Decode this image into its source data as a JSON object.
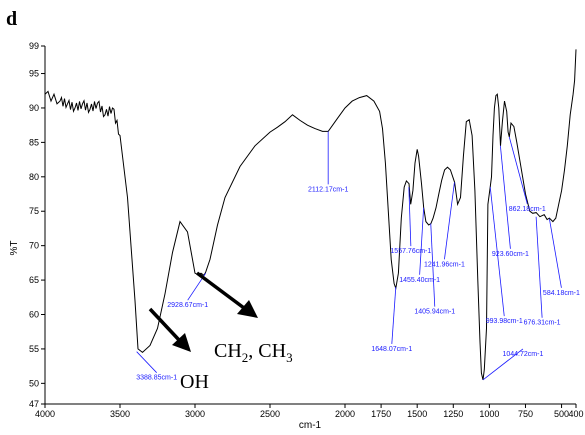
{
  "panel_label": "d",
  "chart_data": {
    "type": "line",
    "title": "",
    "xlabel": "cm-1",
    "ylabel": "%T",
    "xlim": [
      4000,
      400
    ],
    "ylim": [
      47,
      99
    ],
    "x_ticks": [
      4000,
      3500,
      3000,
      2500,
      2000,
      1750,
      1500,
      1250,
      1000,
      750,
      500,
      400
    ],
    "x_tick_labels": [
      "4000",
      "3500",
      "3000",
      "2500",
      "2000",
      "1750",
      "1500",
      "1250",
      "1000",
      "750",
      "500",
      "400"
    ],
    "y_ticks": [
      47,
      50,
      55,
      60,
      65,
      70,
      75,
      80,
      85,
      90,
      95,
      99
    ],
    "y_tick_labels": [
      "47",
      "50",
      "55",
      "60",
      "65",
      "70",
      "75",
      "80",
      "85",
      "90",
      "95",
      "99"
    ],
    "series": [
      {
        "x": [
          4000,
          3900,
          3850,
          3800,
          3750,
          3700,
          3650,
          3600,
          3550,
          3500,
          3450,
          3400,
          3380,
          3350,
          3300,
          3250,
          3200,
          3150,
          3100,
          3050,
          3000,
          2980,
          2960,
          2940,
          2928,
          2900,
          2850,
          2800,
          2700,
          2600,
          2500,
          2450,
          2400,
          2350,
          2300,
          2250,
          2200,
          2150,
          2112,
          2050,
          2000,
          1950,
          1900,
          1850,
          1800,
          1760,
          1740,
          1720,
          1700,
          1680,
          1660,
          1648,
          1630,
          1610,
          1590,
          1575,
          1557,
          1545,
          1530,
          1515,
          1500,
          1490,
          1470,
          1455,
          1440,
          1420,
          1405,
          1390,
          1370,
          1350,
          1330,
          1310,
          1290,
          1270,
          1241,
          1220,
          1200,
          1180,
          1160,
          1140,
          1120,
          1100,
          1080,
          1065,
          1055,
          1044,
          1035,
          1020,
          1010,
          994,
          985,
          975,
          965,
          955,
          945,
          935,
          923,
          910,
          895,
          880,
          870,
          862,
          850,
          830,
          810,
          790,
          770,
          750,
          720,
          700,
          676,
          650,
          620,
          600,
          584,
          560,
          540,
          520,
          500,
          480,
          460,
          440,
          420,
          410,
          400
        ],
        "y": [
          92.0,
          91.0,
          90.6,
          90.0,
          90.6,
          89.8,
          90.7,
          89.0,
          90.0,
          86.0,
          77.0,
          62.0,
          55.0,
          54.5,
          55.5,
          58.0,
          63.0,
          69.0,
          73.5,
          72.0,
          66.0,
          65.8,
          66.0,
          65.7,
          66.2,
          68.0,
          73.0,
          77.0,
          81.5,
          84.5,
          86.5,
          87.2,
          88.0,
          89.0,
          88.2,
          87.5,
          87.0,
          86.6,
          86.6,
          88.5,
          90.0,
          91.0,
          91.5,
          91.8,
          91.0,
          89.5,
          87.0,
          82.0,
          75.0,
          68.0,
          64.5,
          63.8,
          66.0,
          74.0,
          78.5,
          79.4,
          79.0,
          76.0,
          78.0,
          82.0,
          84.0,
          83.0,
          79.0,
          75.5,
          73.5,
          73.0,
          73.2,
          74.0,
          75.5,
          77.5,
          79.5,
          81.0,
          81.4,
          81.0,
          79.2,
          76.0,
          77.0,
          83.0,
          88.0,
          88.3,
          86.0,
          78.0,
          65.0,
          56.0,
          51.5,
          50.5,
          52.0,
          58.0,
          76.0,
          78.5,
          80.0,
          86.0,
          90.0,
          91.8,
          92.0,
          90.0,
          84.5,
          88.0,
          91.0,
          89.5,
          86.5,
          85.8,
          87.8,
          87.3,
          85.0,
          82.5,
          80.0,
          77.5,
          75.0,
          74.7,
          74.8,
          74.2,
          74.5,
          73.8,
          74.0,
          73.5,
          74.0,
          76.0,
          78.0,
          81.0,
          84.5,
          89.0,
          92.0,
          94.0,
          98.5
        ]
      }
    ],
    "peak_labels": [
      {
        "text": "3388.85cm-1",
        "x": 3388.85,
        "y": 54.6
      },
      {
        "text": "2928.67cm-1",
        "x": 2928.67,
        "y": 66.0
      },
      {
        "text": "2112.17cm-1",
        "x": 2112.17,
        "y": 86.6
      },
      {
        "text": "1648.07cm-1",
        "x": 1648.07,
        "y": 64.0
      },
      {
        "text": "1557.76cm-1",
        "x": 1557.76,
        "y": 78.5
      },
      {
        "text": "1455.40cm-1",
        "x": 1455.4,
        "y": 75.5
      },
      {
        "text": "1405.94cm-1",
        "x": 1405.94,
        "y": 73.2
      },
      {
        "text": "1241.96cm-1",
        "x": 1241.96,
        "y": 79.2
      },
      {
        "text": "1044.72cm-1",
        "x": 1044.72,
        "y": 50.5
      },
      {
        "text": "993.98cm-1",
        "x": 993.98,
        "y": 78.5
      },
      {
        "text": "923.60cm-1",
        "x": 923.6,
        "y": 84.5
      },
      {
        "text": "862.18cm-1",
        "x": 862.18,
        "y": 85.8
      },
      {
        "text": "676.31cm-1",
        "x": 676.31,
        "y": 74.2
      },
      {
        "text": "584.18cm-1",
        "x": 584.18,
        "y": 73.9
      }
    ],
    "annotations": [
      {
        "text": "OH",
        "sub": []
      },
      {
        "text": "CH",
        "sub": [
          "2",
          "3"
        ]
      }
    ],
    "grid": false
  }
}
